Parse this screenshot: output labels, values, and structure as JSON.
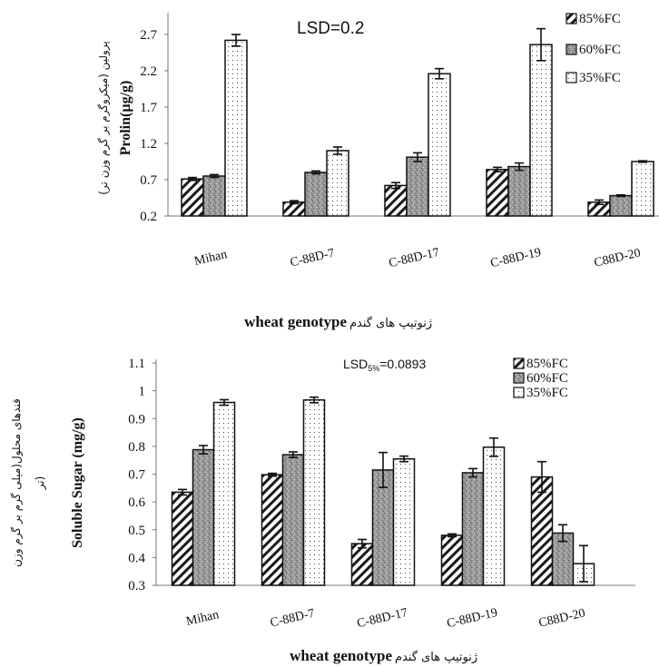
{
  "chart_data": [
    {
      "type": "bar",
      "categories": [
        "Mihan",
        "C-88D-7",
        "C-88D-17",
        "C-88D-19",
        "C88D-20"
      ],
      "series": [
        {
          "name": "85%FC",
          "values": [
            0.71,
            0.39,
            0.62,
            0.84,
            0.39
          ],
          "errors": [
            0.02,
            0.02,
            0.04,
            0.03,
            0.03
          ]
        },
        {
          "name": "60%FC",
          "values": [
            0.75,
            0.8,
            1.01,
            0.88,
            0.48
          ],
          "errors": [
            0.02,
            0.02,
            0.06,
            0.05,
            0.01
          ]
        },
        {
          "name": "35%FC",
          "values": [
            2.62,
            1.1,
            2.16,
            2.56,
            0.95
          ],
          "errors": [
            0.08,
            0.05,
            0.07,
            0.22,
            0.01
          ]
        }
      ],
      "yticks": [
        "0.2",
        "0.7",
        "1.2",
        "1.7",
        "2.2",
        "2.7"
      ],
      "ylim": [
        0.2,
        2.95
      ],
      "annotation": "LSD=0.2",
      "ylabel": "Prolin(µg/g)",
      "ylabel_fa": "پرولین (میکروگرم بر گرم وزن تر)",
      "xlabel": "wheat genotype",
      "xlabel_fa": "ژنوتیپ های گندم",
      "legend_position": "top-right"
    },
    {
      "type": "bar",
      "categories": [
        "Mihan",
        "C-88D-7",
        "C-88D-17",
        "C-88D-19",
        "C88D-20"
      ],
      "series": [
        {
          "name": "85%FC",
          "values": [
            0.635,
            0.698,
            0.45,
            0.48,
            0.69
          ],
          "errors": [
            0.01,
            0.005,
            0.015,
            0.005,
            0.055
          ]
        },
        {
          "name": "60%FC",
          "values": [
            0.788,
            0.77,
            0.715,
            0.705,
            0.488
          ],
          "errors": [
            0.015,
            0.01,
            0.063,
            0.015,
            0.03
          ]
        },
        {
          "name": "35%FC",
          "values": [
            0.958,
            0.967,
            0.755,
            0.797,
            0.378
          ],
          "errors": [
            0.01,
            0.01,
            0.01,
            0.033,
            0.065
          ]
        }
      ],
      "yticks": [
        "0.3",
        "0.4",
        "0.5",
        "0.6",
        "0.7",
        "0.8",
        "0.9",
        "1",
        "1.1"
      ],
      "ylim": [
        0.3,
        1.1
      ],
      "annotation_main": "LSD",
      "annotation_sub": "5%",
      "annotation_value": "=0.0893",
      "ylabel": "Soluble Sugar (mg/g)",
      "ylabel_fa_1": "قندهای محلول(میلی گرم بر گرم وزن",
      "ylabel_fa_2": "تر)",
      "xlabel": "wheat genotype",
      "xlabel_fa": "ژنوتیپ های گندم",
      "legend_position": "top-right"
    }
  ]
}
